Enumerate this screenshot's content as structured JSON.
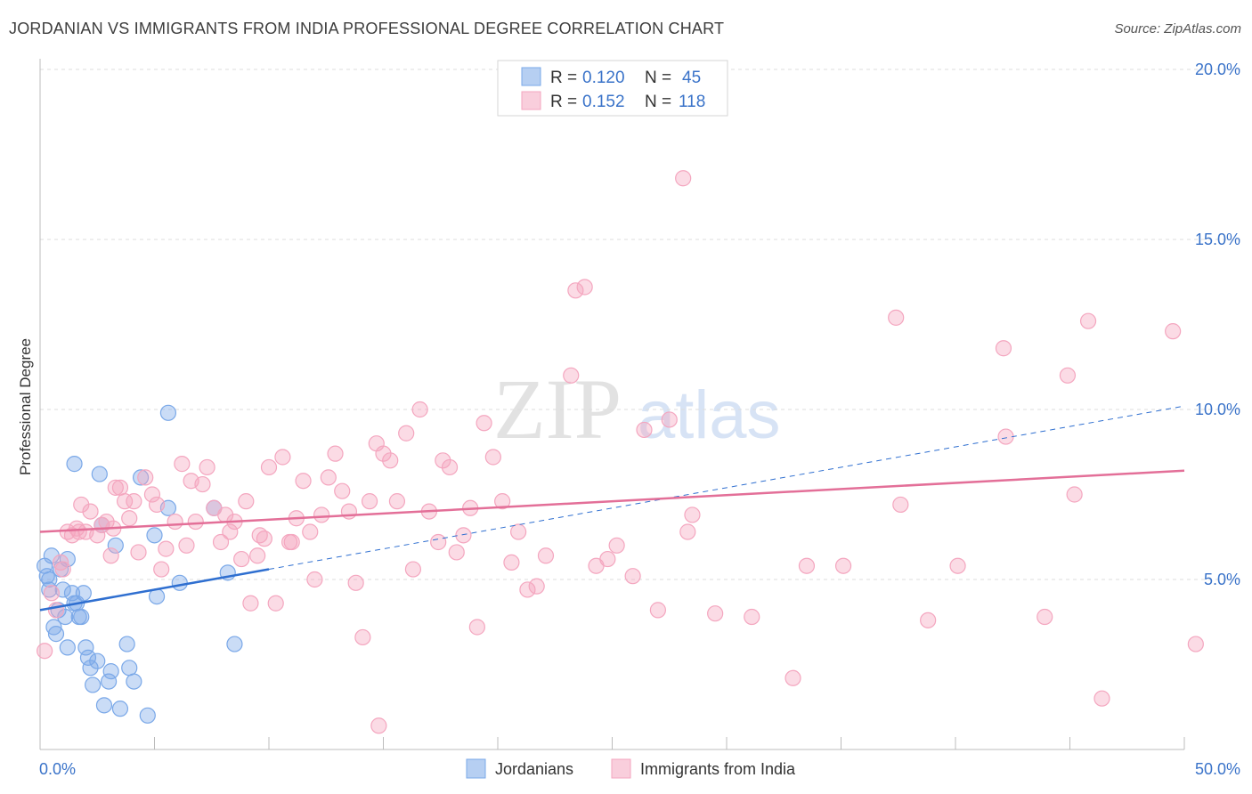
{
  "chart_data": {
    "type": "scatter",
    "title": "JORDANIAN VS IMMIGRANTS FROM INDIA PROFESSIONAL DEGREE CORRELATION CHART",
    "source": "Source: ZipAtlas.com",
    "xlabel": "",
    "ylabel": "Professional Degree",
    "xlim": [
      0,
      50
    ],
    "ylim": [
      0,
      20
    ],
    "x_tick_labels": [
      "0.0%",
      "50.0%"
    ],
    "y_ticks": [
      5,
      10,
      15,
      20
    ],
    "y_tick_labels": [
      "5.0%",
      "10.0%",
      "15.0%",
      "20.0%"
    ],
    "grid": true,
    "watermark": "ZIPatlas",
    "legend_position": "top-center",
    "bottom_legend": [
      "Jordanians",
      "Immigrants from India"
    ],
    "series": [
      {
        "name": "Jordanians",
        "color": "#7aa8e8",
        "line_color": "#2f6fd0",
        "r_label": "R =",
        "r_value": "0.120",
        "n_label": "N =",
        "n_value": "45",
        "trend": {
          "x0": 0,
          "y0": 4.1,
          "x1": 10,
          "y1": 5.3,
          "dash_to_x": 50,
          "dash_to_y": 10.1
        },
        "points": [
          [
            0.3,
            5.1
          ],
          [
            0.4,
            4.7
          ],
          [
            0.5,
            5.7
          ],
          [
            0.6,
            3.6
          ],
          [
            0.7,
            3.4
          ],
          [
            0.8,
            4.1
          ],
          [
            0.9,
            5.3
          ],
          [
            1.0,
            4.7
          ],
          [
            1.1,
            3.9
          ],
          [
            1.2,
            3.0
          ],
          [
            1.2,
            5.6
          ],
          [
            1.4,
            4.6
          ],
          [
            1.5,
            4.3
          ],
          [
            1.5,
            8.4
          ],
          [
            1.6,
            4.3
          ],
          [
            1.7,
            3.9
          ],
          [
            1.8,
            3.9
          ],
          [
            1.9,
            4.6
          ],
          [
            2.0,
            3.0
          ],
          [
            2.1,
            2.7
          ],
          [
            2.2,
            2.4
          ],
          [
            2.3,
            1.9
          ],
          [
            2.5,
            2.6
          ],
          [
            2.6,
            8.1
          ],
          [
            2.7,
            6.6
          ],
          [
            2.8,
            1.3
          ],
          [
            3.0,
            2.0
          ],
          [
            3.1,
            2.3
          ],
          [
            3.3,
            6.0
          ],
          [
            3.5,
            1.2
          ],
          [
            3.8,
            3.1
          ],
          [
            3.9,
            2.4
          ],
          [
            4.1,
            2.0
          ],
          [
            4.4,
            8.0
          ],
          [
            4.7,
            1.0
          ],
          [
            5.0,
            6.3
          ],
          [
            5.1,
            4.5
          ],
          [
            5.6,
            7.1
          ],
          [
            5.6,
            9.9
          ],
          [
            6.1,
            4.9
          ],
          [
            7.6,
            7.1
          ],
          [
            8.2,
            5.2
          ],
          [
            8.5,
            3.1
          ],
          [
            0.2,
            5.4
          ],
          [
            0.4,
            5.0
          ]
        ]
      },
      {
        "name": "Immigrants from India",
        "color": "#f4a6bf",
        "line_color": "#e36f98",
        "r_label": "R =",
        "r_value": "0.152",
        "n_label": "N =",
        "n_value": "118",
        "trend": {
          "x0": 0,
          "y0": 6.4,
          "x1": 50,
          "y1": 8.2
        },
        "points": [
          [
            0.2,
            2.9
          ],
          [
            0.5,
            4.6
          ],
          [
            0.7,
            4.1
          ],
          [
            0.9,
            5.5
          ],
          [
            1.0,
            5.3
          ],
          [
            1.2,
            6.4
          ],
          [
            1.4,
            6.3
          ],
          [
            1.6,
            6.5
          ],
          [
            1.8,
            7.2
          ],
          [
            2.0,
            6.4
          ],
          [
            2.2,
            7.0
          ],
          [
            2.5,
            6.3
          ],
          [
            2.7,
            6.6
          ],
          [
            2.9,
            6.7
          ],
          [
            3.1,
            5.7
          ],
          [
            3.3,
            7.7
          ],
          [
            3.5,
            7.7
          ],
          [
            3.7,
            7.3
          ],
          [
            3.9,
            6.8
          ],
          [
            4.1,
            7.3
          ],
          [
            4.3,
            5.8
          ],
          [
            4.6,
            8.0
          ],
          [
            4.9,
            7.5
          ],
          [
            5.1,
            7.2
          ],
          [
            5.3,
            5.3
          ],
          [
            5.5,
            5.9
          ],
          [
            5.9,
            6.7
          ],
          [
            6.2,
            8.4
          ],
          [
            6.4,
            6.0
          ],
          [
            6.6,
            7.9
          ],
          [
            6.8,
            6.7
          ],
          [
            7.1,
            7.8
          ],
          [
            7.3,
            8.3
          ],
          [
            7.6,
            7.1
          ],
          [
            7.9,
            6.1
          ],
          [
            8.1,
            6.9
          ],
          [
            8.3,
            6.4
          ],
          [
            8.5,
            6.7
          ],
          [
            8.8,
            5.6
          ],
          [
            9.0,
            7.3
          ],
          [
            9.2,
            4.3
          ],
          [
            9.5,
            5.7
          ],
          [
            9.8,
            6.2
          ],
          [
            10.0,
            8.3
          ],
          [
            10.3,
            4.3
          ],
          [
            10.6,
            8.6
          ],
          [
            10.9,
            6.1
          ],
          [
            11.2,
            6.8
          ],
          [
            11.5,
            7.9
          ],
          [
            11.8,
            6.4
          ],
          [
            12.0,
            5.0
          ],
          [
            12.3,
            6.9
          ],
          [
            12.6,
            8.0
          ],
          [
            12.9,
            8.7
          ],
          [
            13.2,
            7.6
          ],
          [
            13.5,
            7.0
          ],
          [
            13.8,
            4.9
          ],
          [
            14.1,
            3.3
          ],
          [
            14.4,
            7.3
          ],
          [
            14.7,
            9.0
          ],
          [
            15.0,
            8.7
          ],
          [
            15.3,
            8.5
          ],
          [
            15.6,
            7.3
          ],
          [
            16.0,
            9.3
          ],
          [
            16.3,
            5.3
          ],
          [
            16.6,
            10.0
          ],
          [
            17.0,
            7.0
          ],
          [
            17.4,
            6.1
          ],
          [
            17.6,
            8.5
          ],
          [
            17.9,
            8.3
          ],
          [
            18.2,
            5.8
          ],
          [
            18.5,
            6.3
          ],
          [
            18.8,
            7.1
          ],
          [
            19.1,
            3.6
          ],
          [
            19.4,
            9.6
          ],
          [
            19.8,
            8.6
          ],
          [
            20.2,
            7.3
          ],
          [
            20.6,
            5.5
          ],
          [
            20.9,
            6.4
          ],
          [
            21.3,
            4.7
          ],
          [
            21.7,
            4.8
          ],
          [
            22.1,
            5.7
          ],
          [
            23.2,
            11.0
          ],
          [
            23.4,
            13.5
          ],
          [
            23.8,
            13.6
          ],
          [
            24.3,
            5.4
          ],
          [
            24.8,
            5.6
          ],
          [
            25.2,
            6.0
          ],
          [
            25.9,
            5.1
          ],
          [
            26.4,
            9.4
          ],
          [
            27.0,
            4.1
          ],
          [
            27.5,
            9.7
          ],
          [
            28.1,
            16.8
          ],
          [
            28.3,
            6.4
          ],
          [
            28.5,
            6.9
          ],
          [
            32.9,
            2.1
          ],
          [
            33.5,
            5.4
          ],
          [
            37.4,
            12.7
          ],
          [
            37.6,
            7.2
          ],
          [
            38.8,
            3.8
          ],
          [
            40.1,
            5.4
          ],
          [
            42.1,
            11.8
          ],
          [
            42.2,
            9.2
          ],
          [
            43.9,
            3.9
          ],
          [
            44.9,
            11.0
          ],
          [
            45.2,
            7.5
          ],
          [
            45.8,
            12.6
          ],
          [
            46.4,
            1.5
          ],
          [
            49.5,
            12.3
          ],
          [
            50.5,
            3.1
          ],
          [
            14.8,
            0.7
          ],
          [
            9.6,
            6.3
          ],
          [
            11.0,
            6.1
          ],
          [
            29.5,
            4.0
          ],
          [
            31.1,
            3.9
          ],
          [
            35.1,
            5.4
          ],
          [
            1.7,
            6.4
          ],
          [
            3.2,
            6.5
          ]
        ]
      }
    ]
  }
}
